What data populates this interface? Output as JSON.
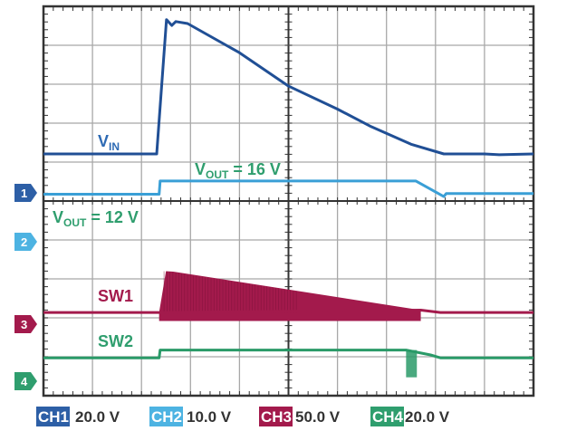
{
  "chart_data": {
    "type": "line",
    "title": "",
    "xlabel": "",
    "ylabel": "",
    "grid": true,
    "x_divisions": 10,
    "y_divisions": 10,
    "xlim": [
      0,
      10
    ],
    "channels": [
      {
        "id": "CH1",
        "number": "1",
        "scale": "20.0 V",
        "volts_per_div": 20,
        "color": "#2d5fa6",
        "trace_color": "#204f95"
      },
      {
        "id": "CH2",
        "number": "2",
        "scale": "10.0 V",
        "volts_per_div": 10,
        "color": "#4db3e2",
        "trace_color": "#3a9fd6"
      },
      {
        "id": "CH3",
        "number": "3",
        "scale": "50.0 V",
        "volts_per_div": 50,
        "color": "#a31a4c",
        "trace_color": "#a31a4c"
      },
      {
        "id": "CH4",
        "number": "4",
        "scale": "20.0 V",
        "volts_per_div": 20,
        "color": "#2f9e6e",
        "trace_color": "#2a9a68"
      }
    ],
    "series": [
      {
        "name": "VIN",
        "channel": "CH1",
        "points": [
          [
            0,
            20
          ],
          [
            2.31,
            20
          ],
          [
            2.51,
            89
          ],
          [
            2.62,
            86
          ],
          [
            2.7,
            88
          ],
          [
            2.94,
            87
          ],
          [
            4.0,
            72
          ],
          [
            4.99,
            55
          ],
          [
            6.0,
            43
          ],
          [
            6.69,
            34
          ],
          [
            7.5,
            25
          ],
          [
            8.17,
            20
          ],
          [
            9.0,
            20
          ],
          [
            9.3,
            19.6
          ],
          [
            10,
            20
          ]
        ]
      },
      {
        "name": "VOUT",
        "channel": "CH2",
        "points": [
          [
            0,
            12.2
          ],
          [
            2.36,
            12.2
          ],
          [
            2.38,
            15.6
          ],
          [
            7.6,
            15.6
          ],
          [
            8.17,
            11.6
          ],
          [
            8.22,
            12.4
          ],
          [
            10,
            12.4
          ]
        ]
      },
      {
        "name": "SW1",
        "channel": "CH3",
        "baseline": 15,
        "burst_start": 2.36,
        "burst_end": 7.7,
        "burst_peak": [
          2.5,
          68
        ],
        "burst_end_top": 18,
        "burst_low": 4,
        "points": [
          [
            0,
            15
          ],
          [
            2.36,
            15
          ],
          [
            7.7,
            18
          ],
          [
            8.1,
            15
          ],
          [
            10,
            15
          ]
        ]
      },
      {
        "name": "SW2",
        "channel": "CH4",
        "points": [
          [
            0,
            12
          ],
          [
            2.36,
            12
          ],
          [
            2.38,
            16
          ],
          [
            7.4,
            16
          ],
          [
            7.9,
            13.5
          ],
          [
            8.1,
            12
          ],
          [
            10,
            12
          ]
        ],
        "pulse": {
          "start": 7.4,
          "end": 7.62,
          "low": 2
        }
      }
    ],
    "annotations": [
      {
        "text": "V",
        "sub": "IN",
        "color": "#2d6ab4"
      },
      {
        "text": "V",
        "sub": "OUT",
        "suffix": " = 16 V",
        "color": "#2f9e6e"
      },
      {
        "text": "V",
        "sub": "OUT",
        "suffix": " = 12 V",
        "color": "#2f9e6e"
      },
      {
        "text": "SW1",
        "color": "#a31a4c"
      },
      {
        "text": "SW2",
        "color": "#2f9e6e"
      }
    ]
  }
}
